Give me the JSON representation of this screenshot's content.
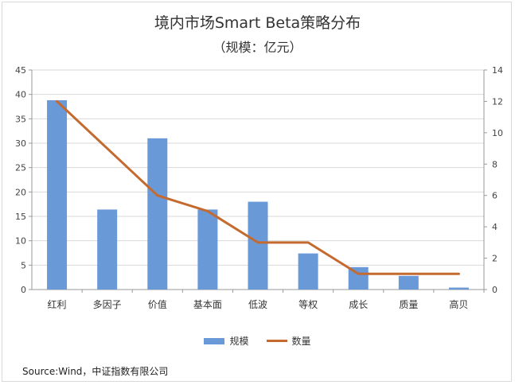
{
  "chart_data": {
    "type": "bar+line",
    "title": "境内市场Smart Beta策略分布",
    "subtitle": "（规模：亿元）",
    "categories": [
      "红利",
      "多因子",
      "价值",
      "基本面",
      "低波",
      "等权",
      "成长",
      "质量",
      "高贝"
    ],
    "series": [
      {
        "name": "规模",
        "type": "bar",
        "axis": "left",
        "color": "#6a99d8",
        "values": [
          38.8,
          16.4,
          31.0,
          16.4,
          18.0,
          7.4,
          4.6,
          2.8,
          0.4
        ]
      },
      {
        "name": "数量",
        "type": "line",
        "axis": "right",
        "color": "#c46a2f",
        "values": [
          12,
          9,
          6,
          5,
          3,
          3,
          1,
          1,
          1
        ]
      }
    ],
    "y_left": {
      "min": 0,
      "max": 45,
      "step": 5
    },
    "y_right": {
      "min": 0,
      "max": 14,
      "step": 2
    },
    "grid": true,
    "legend": "bottom-center"
  },
  "source": "Source:Wind，中证指数有限公司"
}
